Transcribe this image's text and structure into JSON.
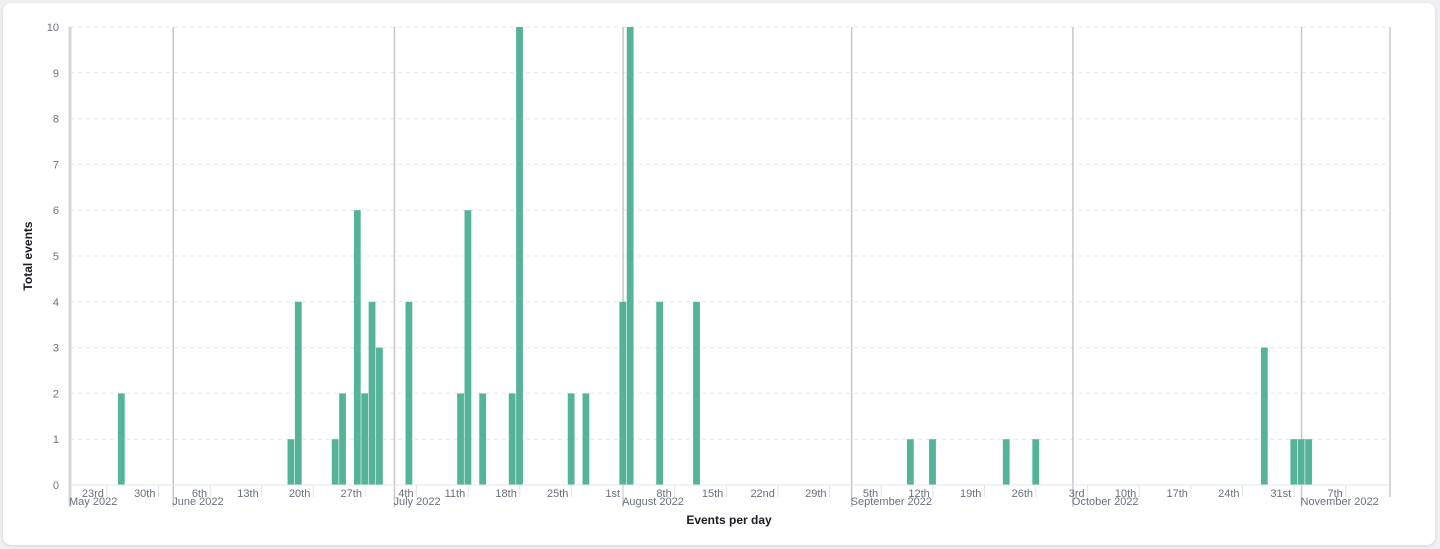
{
  "chart_data": {
    "type": "bar",
    "title": "",
    "xlabel": "Events per day",
    "ylabel": "Total events",
    "ylim": [
      0,
      10
    ],
    "yticks": [
      0,
      1,
      2,
      3,
      4,
      5,
      6,
      7,
      8,
      9,
      10
    ],
    "grid": true,
    "bar_color": "#54b399",
    "xrange": [
      "2022-05-18",
      "2022-11-13"
    ],
    "x_minor_ticks": [
      {
        "date": "2022-05-23",
        "label": "23rd"
      },
      {
        "date": "2022-05-30",
        "label": "30th"
      },
      {
        "date": "2022-06-06",
        "label": "6th"
      },
      {
        "date": "2022-06-13",
        "label": "13th"
      },
      {
        "date": "2022-06-20",
        "label": "20th"
      },
      {
        "date": "2022-06-27",
        "label": "27th"
      },
      {
        "date": "2022-07-04",
        "label": "4th"
      },
      {
        "date": "2022-07-11",
        "label": "11th"
      },
      {
        "date": "2022-07-18",
        "label": "18th"
      },
      {
        "date": "2022-07-25",
        "label": "25th"
      },
      {
        "date": "2022-08-01",
        "label": "1st"
      },
      {
        "date": "2022-08-08",
        "label": "8th"
      },
      {
        "date": "2022-08-15",
        "label": "15th"
      },
      {
        "date": "2022-08-22",
        "label": "22nd"
      },
      {
        "date": "2022-08-29",
        "label": "29th"
      },
      {
        "date": "2022-09-05",
        "label": "5th"
      },
      {
        "date": "2022-09-12",
        "label": "12th"
      },
      {
        "date": "2022-09-19",
        "label": "19th"
      },
      {
        "date": "2022-09-26",
        "label": "26th"
      },
      {
        "date": "2022-10-03",
        "label": "3rd"
      },
      {
        "date": "2022-10-10",
        "label": "10th"
      },
      {
        "date": "2022-10-17",
        "label": "17th"
      },
      {
        "date": "2022-10-24",
        "label": "24th"
      },
      {
        "date": "2022-10-31",
        "label": "31st"
      },
      {
        "date": "2022-11-07",
        "label": "7th"
      }
    ],
    "x_major_ticks": [
      {
        "date": "2022-05-18",
        "label": "May 2022"
      },
      {
        "date": "2022-06-01",
        "label": "June 2022"
      },
      {
        "date": "2022-07-01",
        "label": "July 2022"
      },
      {
        "date": "2022-08-01",
        "label": "August 2022"
      },
      {
        "date": "2022-09-01",
        "label": "September 2022"
      },
      {
        "date": "2022-10-01",
        "label": "October 2022"
      },
      {
        "date": "2022-11-01",
        "label": "November 2022"
      }
    ],
    "x": [
      "2022-05-25",
      "2022-06-17",
      "2022-06-18",
      "2022-06-23",
      "2022-06-24",
      "2022-06-26",
      "2022-06-27",
      "2022-06-28",
      "2022-06-29",
      "2022-07-03",
      "2022-07-10",
      "2022-07-11",
      "2022-07-13",
      "2022-07-17",
      "2022-07-18",
      "2022-07-25",
      "2022-07-27",
      "2022-08-01",
      "2022-08-02",
      "2022-08-06",
      "2022-08-11",
      "2022-09-09",
      "2022-09-12",
      "2022-09-22",
      "2022-09-26",
      "2022-10-27",
      "2022-10-31",
      "2022-11-01",
      "2022-11-02"
    ],
    "values": [
      2,
      1,
      4,
      1,
      2,
      6,
      2,
      4,
      3,
      4,
      2,
      6,
      2,
      2,
      10,
      2,
      2,
      4,
      10,
      4,
      4,
      1,
      1,
      1,
      1,
      3,
      1,
      1,
      1
    ]
  }
}
